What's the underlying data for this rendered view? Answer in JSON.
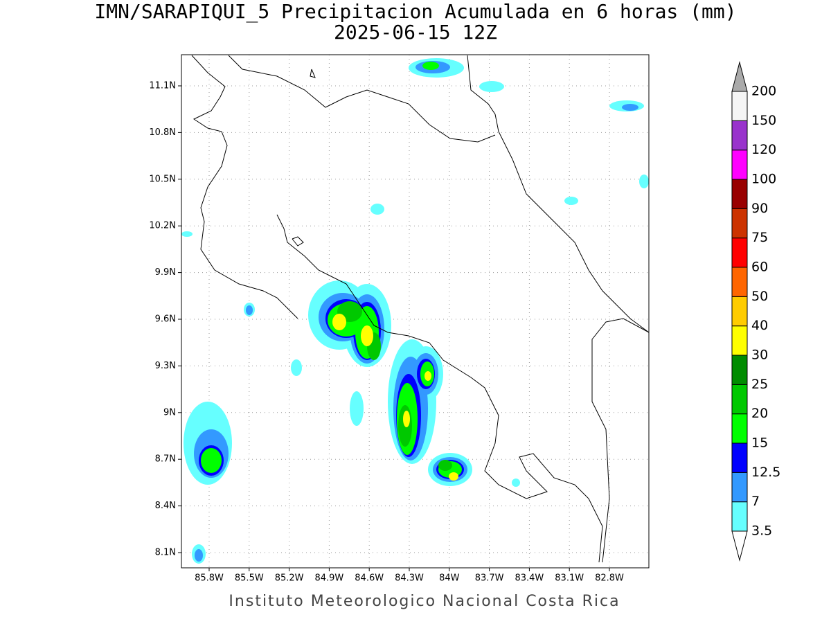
{
  "title": "IMN/SARAPIQUI_5 Precipitacion Acumulada en 6 horas (mm)",
  "subtitle": "2025-06-15 12Z",
  "lat_labels": [
    "11.1N",
    "10.8N",
    "10.5N",
    "10.2N",
    "9.9N",
    "9.6N",
    "9.3N",
    "9N",
    "8.7N",
    "8.4N",
    "8.1N"
  ],
  "lon_labels": [
    "85.8W",
    "85.5W",
    "85.2W",
    "84.9W",
    "84.6W",
    "84.3W",
    "84W",
    "83.7W",
    "83.4W",
    "83.1W",
    "82.8W"
  ],
  "colorbar": {
    "levels": [
      3.5,
      7,
      12.5,
      15,
      20,
      25,
      30,
      40,
      50,
      60,
      75,
      90,
      100,
      120,
      150,
      200
    ],
    "colors": [
      "#66ffff",
      "#3399ff",
      "#0000ff",
      "#00ff00",
      "#00c800",
      "#008c00",
      "#ffff00",
      "#ffcc00",
      "#ff6600",
      "#ff0000",
      "#cc3300",
      "#990000",
      "#ff00ff",
      "#9933cc",
      "#f5f5f5"
    ],
    "under_color": "#ffffff",
    "over_color": "#aaaaaa"
  },
  "footer": "Instituto Meteorologico Nacional Costa Rica"
}
